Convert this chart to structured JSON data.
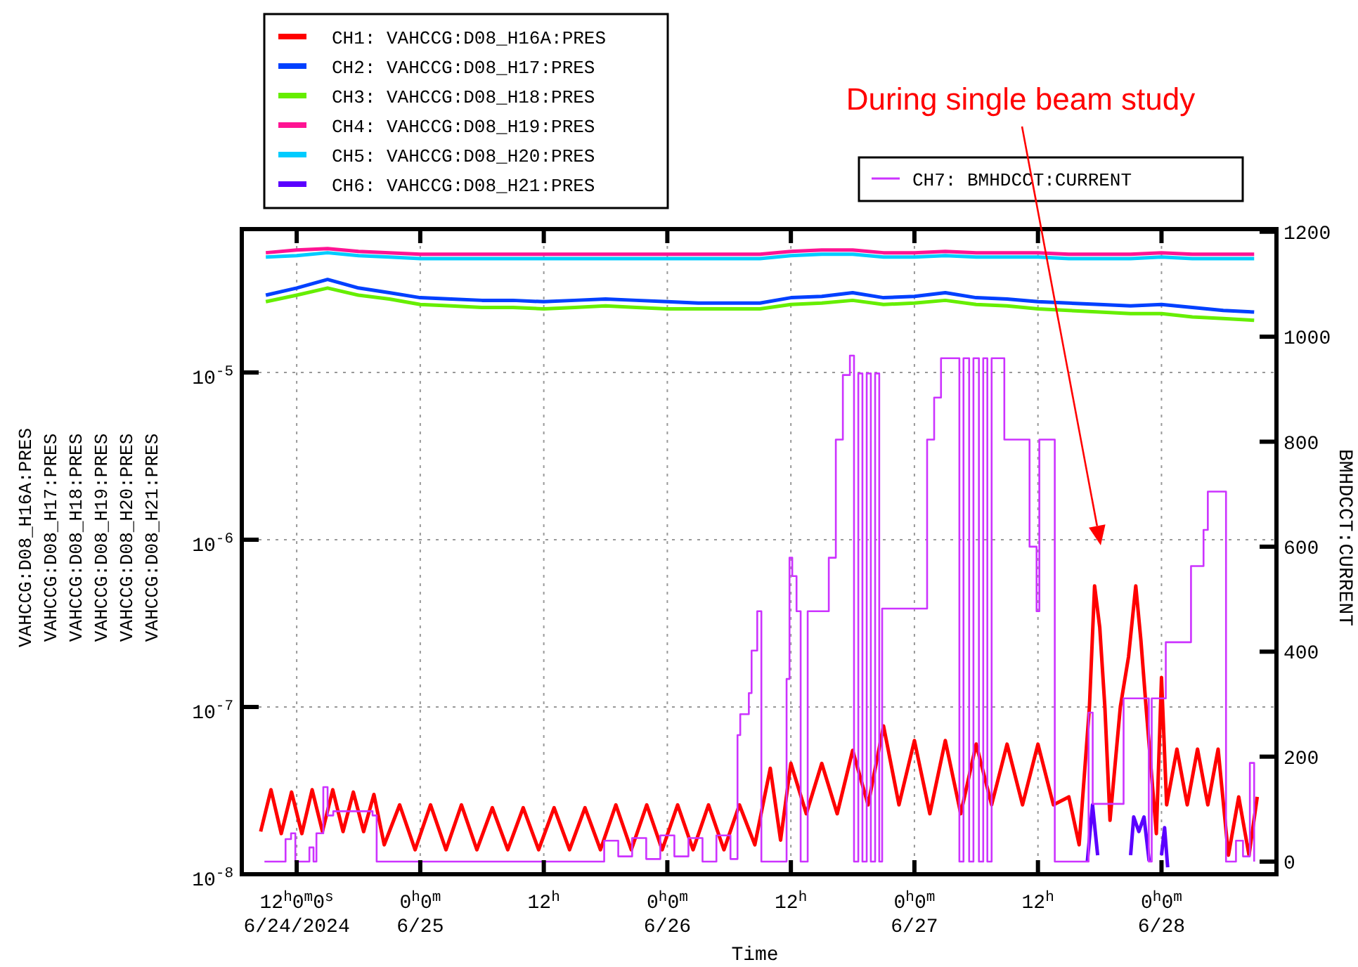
{
  "chart_data": {
    "type": "line",
    "xlabel": "Time",
    "ylabel": "VAHCCG:D08_H16A:PRES\nVAHCCG:D08_H17:PRES\nVAHCCG:D08_H18:PRES\nVAHCCG:D08_H19:PRES\nVAHCCG:D08_H20:PRES\nVAHCCG:D08_H21:PRES",
    "y2label": "BMHDCCT:CURRENT",
    "log": true,
    "grid": true,
    "legend": "top",
    "xlim": [
      "2024-06-24T06:40",
      "2024-06-28T11:10"
    ],
    "xticks": [
      {
        "value": "2024-06-24T12:00",
        "label": "12$^{h}$0$^{m}$0$^{s}$\n6/24/2024"
      },
      {
        "value": "2024-06-25T00:00",
        "label": "0$^{h}$0$^{m}$\n6/25"
      },
      {
        "value": "2024-06-25T12:00",
        "label": "12$^{h}$"
      },
      {
        "value": "2024-06-26T00:00",
        "label": "0$^{h}$0$^{m}$\n6/26"
      },
      {
        "value": "2024-06-26T12:00",
        "label": "12$^{h}$"
      },
      {
        "value": "2024-06-27T00:00",
        "label": "0$^{h}$0$^{m}$\n6/27"
      },
      {
        "value": "2024-06-27T12:00",
        "label": "12$^{h}$"
      },
      {
        "value": "2024-06-28T00:00",
        "label": "0$^{h}$0$^{m}$\n6/28"
      }
    ],
    "ylim": [
      1e-08,
      7.2e-05
    ],
    "yticks": [
      {
        "value": 1e-08,
        "label": "10$^{-8}$"
      },
      {
        "value": 1e-07,
        "label": "10$^{-7}$"
      },
      {
        "value": 1e-06,
        "label": "10$^{-6}$"
      },
      {
        "value": 1e-05,
        "label": "10$^{-5}$"
      }
    ],
    "y2lim": [
      -24,
      1205
    ],
    "y2ticks": [
      0,
      200,
      400,
      600,
      800,
      1000,
      1200
    ],
    "annotations": [
      "During single beam study"
    ],
    "x": [
      "2024-06-24T09:00",
      "2024-06-24T12:00",
      "2024-06-24T15:00",
      "2024-06-24T18:00",
      "2024-06-24T21:00",
      "2024-06-25T00:00",
      "2024-06-25T03:00",
      "2024-06-25T06:00",
      "2024-06-25T09:00",
      "2024-06-25T12:00",
      "2024-06-25T15:00",
      "2024-06-25T18:00",
      "2024-06-25T21:00",
      "2024-06-26T00:00",
      "2024-06-26T03:00",
      "2024-06-26T06:00",
      "2024-06-26T09:00",
      "2024-06-26T12:00",
      "2024-06-26T15:00",
      "2024-06-26T18:00",
      "2024-06-26T21:00",
      "2024-06-27T00:00",
      "2024-06-27T03:00",
      "2024-06-27T06:00",
      "2024-06-27T09:00",
      "2024-06-27T12:00",
      "2024-06-27T15:00",
      "2024-06-27T18:00",
      "2024-06-27T21:00",
      "2024-06-28T00:00",
      "2024-06-28T03:00",
      "2024-06-28T06:00",
      "2024-06-28T09:00"
    ],
    "series": [
      {
        "name": "CH1: VAHCCG:D08_H16A:PRES",
        "color": "#ff0000",
        "x": [
          "2024-06-24T08:30",
          "2024-06-24T09:30",
          "2024-06-24T10:30",
          "2024-06-24T11:30",
          "2024-06-24T12:30",
          "2024-06-24T13:30",
          "2024-06-24T14:30",
          "2024-06-24T15:30",
          "2024-06-24T16:30",
          "2024-06-24T17:30",
          "2024-06-24T18:30",
          "2024-06-24T19:30",
          "2024-06-24T20:30",
          "2024-06-24T22:00",
          "2024-06-24T23:30",
          "2024-06-25T01:00",
          "2024-06-25T02:30",
          "2024-06-25T04:00",
          "2024-06-25T05:30",
          "2024-06-25T07:00",
          "2024-06-25T08:30",
          "2024-06-25T10:00",
          "2024-06-25T11:30",
          "2024-06-25T13:00",
          "2024-06-25T14:30",
          "2024-06-25T16:00",
          "2024-06-25T17:30",
          "2024-06-25T19:00",
          "2024-06-25T20:30",
          "2024-06-25T22:00",
          "2024-06-25T23:30",
          "2024-06-26T01:00",
          "2024-06-26T02:30",
          "2024-06-26T04:00",
          "2024-06-26T05:30",
          "2024-06-26T07:00",
          "2024-06-26T08:30",
          "2024-06-26T10:00",
          "2024-06-26T11:00",
          "2024-06-26T12:00",
          "2024-06-26T13:30",
          "2024-06-26T15:00",
          "2024-06-26T16:30",
          "2024-06-26T18:00",
          "2024-06-26T19:30",
          "2024-06-26T21:00",
          "2024-06-26T22:30",
          "2024-06-27T00:00",
          "2024-06-27T01:30",
          "2024-06-27T03:00",
          "2024-06-27T04:30",
          "2024-06-27T06:00",
          "2024-06-27T07:30",
          "2024-06-27T09:00",
          "2024-06-27T10:30",
          "2024-06-27T12:00",
          "2024-06-27T13:30",
          "2024-06-27T15:00",
          "2024-06-27T16:00",
          "2024-06-27T17:00",
          "2024-06-27T17:30",
          "2024-06-27T18:00",
          "2024-06-27T18:30",
          "2024-06-27T19:00",
          "2024-06-27T20:00",
          "2024-06-27T20:48",
          "2024-06-27T21:30",
          "2024-06-27T22:00",
          "2024-06-27T22:30",
          "2024-06-27T23:30",
          "2024-06-28T00:00",
          "2024-06-28T00:30",
          "2024-06-28T01:30",
          "2024-06-28T02:30",
          "2024-06-28T03:30",
          "2024-06-28T04:30",
          "2024-06-28T05:30",
          "2024-06-28T06:30",
          "2024-06-28T07:30",
          "2024-06-28T08:30",
          "2024-06-28T09:18"
        ],
        "values": [
          1.8e-08,
          3.2e-08,
          1.75e-08,
          3.1e-08,
          1.75e-08,
          3.2e-08,
          1.8e-08,
          3.2e-08,
          1.8e-08,
          3.1e-08,
          1.8e-08,
          3e-08,
          1.5e-08,
          2.6e-08,
          1.4e-08,
          2.6e-08,
          1.4e-08,
          2.6e-08,
          1.4e-08,
          2.5e-08,
          1.4e-08,
          2.5e-08,
          1.4e-08,
          2.5e-08,
          1.4e-08,
          2.5e-08,
          1.4e-08,
          2.6e-08,
          1.4e-08,
          2.6e-08,
          1.4e-08,
          2.6e-08,
          1.4e-08,
          2.6e-08,
          1.4e-08,
          2.6e-08,
          1.5e-08,
          4.3e-08,
          1.6e-08,
          4.6e-08,
          2.3e-08,
          4.6e-08,
          2.3e-08,
          5.5e-08,
          2.6e-08,
          7.7e-08,
          2.6e-08,
          6.3e-08,
          2.3e-08,
          6.3e-08,
          2.3e-08,
          6e-08,
          2.6e-08,
          6e-08,
          2.6e-08,
          6e-08,
          2.6e-08,
          2.9e-08,
          1.5e-08,
          1e-07,
          5.3e-07,
          3e-07,
          1e-07,
          2.1e-08,
          1e-07,
          2e-07,
          5.3e-07,
          2.5e-07,
          1e-07,
          1.75e-08,
          1.5e-07,
          2.6e-08,
          5.6e-08,
          2.6e-08,
          5.6e-08,
          2.6e-08,
          5.6e-08,
          1.3e-08,
          2.9e-08,
          1.3e-08,
          2.9e-08
        ]
      },
      {
        "name": "CH2: VAHCCG:D08_H17:PRES",
        "color": "#0040ff",
        "values": [
          2.9e-05,
          3.2e-05,
          3.6e-05,
          3.2e-05,
          3e-05,
          2.8e-05,
          2.75e-05,
          2.7e-05,
          2.7e-05,
          2.65e-05,
          2.7e-05,
          2.75e-05,
          2.7e-05,
          2.65e-05,
          2.6e-05,
          2.6e-05,
          2.6e-05,
          2.8e-05,
          2.85e-05,
          3e-05,
          2.8e-05,
          2.85e-05,
          3e-05,
          2.8e-05,
          2.75e-05,
          2.65e-05,
          2.6e-05,
          2.55e-05,
          2.5e-05,
          2.55e-05,
          2.45e-05,
          2.35e-05,
          2.3e-05
        ]
      },
      {
        "name": "CH3: VAHCCG:D08_H18:PRES",
        "color": "#66ee00",
        "values": [
          2.65e-05,
          2.9e-05,
          3.2e-05,
          2.9e-05,
          2.75e-05,
          2.55e-05,
          2.5e-05,
          2.45e-05,
          2.45e-05,
          2.4e-05,
          2.45e-05,
          2.5e-05,
          2.45e-05,
          2.4e-05,
          2.4e-05,
          2.4e-05,
          2.4e-05,
          2.55e-05,
          2.6e-05,
          2.7e-05,
          2.55e-05,
          2.6e-05,
          2.7e-05,
          2.55e-05,
          2.5e-05,
          2.4e-05,
          2.35e-05,
          2.3e-05,
          2.25e-05,
          2.25e-05,
          2.15e-05,
          2.1e-05,
          2.05e-05
        ]
      },
      {
        "name": "CH4: VAHCCG:D08_H19:PRES",
        "color": "#ff1493",
        "values": [
          5.2e-05,
          5.4e-05,
          5.5e-05,
          5.3e-05,
          5.2e-05,
          5.1e-05,
          5.1e-05,
          5.1e-05,
          5.1e-05,
          5.1e-05,
          5.1e-05,
          5.1e-05,
          5.1e-05,
          5.1e-05,
          5.1e-05,
          5.1e-05,
          5.1e-05,
          5.3e-05,
          5.4e-05,
          5.4e-05,
          5.2e-05,
          5.2e-05,
          5.3e-05,
          5.2e-05,
          5.2e-05,
          5.2e-05,
          5.1e-05,
          5.1e-05,
          5.1e-05,
          5.2e-05,
          5.1e-05,
          5.1e-05,
          5.1e-05
        ]
      },
      {
        "name": "CH5: VAHCCG:D08_H20:PRES",
        "color": "#00ccff",
        "values": [
          4.9e-05,
          5e-05,
          5.2e-05,
          5e-05,
          4.9e-05,
          4.8e-05,
          4.8e-05,
          4.8e-05,
          4.8e-05,
          4.8e-05,
          4.8e-05,
          4.8e-05,
          4.8e-05,
          4.8e-05,
          4.8e-05,
          4.8e-05,
          4.8e-05,
          5e-05,
          5.1e-05,
          5.1e-05,
          4.9e-05,
          4.9e-05,
          5e-05,
          4.9e-05,
          4.9e-05,
          4.9e-05,
          4.8e-05,
          4.8e-05,
          4.8e-05,
          4.9e-05,
          4.8e-05,
          4.8e-05,
          4.8e-05
        ]
      },
      {
        "name": "CH6: VAHCCG:D08_H21:PRES",
        "color": "#5a00ff",
        "x": [
          "2024-06-27T16:48",
          "2024-06-27T17:18",
          "2024-06-27T17:48",
          "2024-06-27T18:18",
          "2024-06-27T21:00",
          "2024-06-27T21:18",
          "2024-06-27T21:48",
          "2024-06-27T22:18",
          "2024-06-27T22:48",
          "2024-06-27T23:30",
          "2024-06-28T00:00",
          "2024-06-28T00:18",
          "2024-06-28T00:36"
        ],
        "values": [
          1.2e-08,
          2.6e-08,
          1.3e-08,
          null,
          1.3e-08,
          2.2e-08,
          1.8e-08,
          2.2e-08,
          1.2e-08,
          null,
          1.3e-08,
          1.9e-08,
          1.1e-08
        ]
      },
      {
        "name": "CH7: BMHDCCT:CURRENT",
        "color": "#cc33ff",
        "type": "step",
        "axis": "y2",
        "x": [
          "2024-06-24T08:52",
          "2024-06-24T10:55",
          "2024-06-24T11:27",
          "2024-06-24T11:52",
          "2024-06-24T13:14",
          "2024-06-24T13:38",
          "2024-06-24T13:55",
          "2024-06-24T14:35",
          "2024-06-24T15:00",
          "2024-06-24T15:33",
          "2024-06-24T19:22",
          "2024-06-24T19:46",
          "2024-06-25T17:11",
          "2024-06-25T17:52",
          "2024-06-25T19:14",
          "2024-06-25T20:35",
          "2024-06-25T21:57",
          "2024-06-25T23:19",
          "2024-06-26T00:41",
          "2024-06-26T02:03",
          "2024-06-26T03:25",
          "2024-06-26T04:46",
          "2024-06-26T06:08",
          "2024-06-26T06:49",
          "2024-06-26T07:05",
          "2024-06-26T07:55",
          "2024-06-26T08:11",
          "2024-06-26T08:44",
          "2024-06-26T09:08",
          "2024-06-26T11:27",
          "2024-06-26T11:35",
          "2024-06-26T11:52",
          "2024-06-26T12:08",
          "2024-06-26T12:33",
          "2024-06-26T12:57",
          "2024-06-26T13:38",
          "2024-06-26T15:25",
          "2024-06-26T15:41",
          "2024-06-26T16:22",
          "2024-06-26T17:03",
          "2024-06-26T17:44",
          "2024-06-26T18:08",
          "2024-06-26T18:33",
          "2024-06-26T18:57",
          "2024-06-26T19:22",
          "2024-06-26T19:46",
          "2024-06-26T20:11",
          "2024-06-26T20:35",
          "2024-06-26T20:52",
          "2024-06-27T00:57",
          "2024-06-27T01:14",
          "2024-06-27T01:55",
          "2024-06-27T02:35",
          "2024-06-27T03:57",
          "2024-06-27T04:22",
          "2024-06-27T04:46",
          "2024-06-27T05:19",
          "2024-06-27T05:44",
          "2024-06-27T06:16",
          "2024-06-27T06:41",
          "2024-06-27T07:05",
          "2024-06-27T07:30",
          "2024-06-27T08:27",
          "2024-06-27T08:44",
          "2024-06-27T10:14",
          "2024-06-27T11:11",
          "2024-06-27T11:52",
          "2024-06-27T12:08",
          "2024-06-27T13:30",
          "2024-06-27T13:38",
          "2024-06-27T16:30",
          "2024-06-27T16:55",
          "2024-06-27T17:19",
          "2024-06-27T20:03",
          "2024-06-27T20:19",
          "2024-06-27T22:38",
          "2024-06-27T22:46",
          "2024-06-27T23:03",
          "2024-06-28T00:25",
          "2024-06-28T01:46",
          "2024-06-28T02:52",
          "2024-06-28T04:05",
          "2024-06-28T04:30",
          "2024-06-28T06:08",
          "2024-06-28T06:16",
          "2024-06-28T07:14",
          "2024-06-28T07:55",
          "2024-06-28T08:35",
          "2024-06-28T09:00"
        ],
        "values": [
          0,
          43,
          54,
          0,
          27,
          0,
          54,
          142,
          88,
          96,
          88,
          0,
          0,
          40,
          10,
          45,
          5,
          50,
          10,
          45,
          0,
          50,
          5,
          241,
          281,
          321,
          402,
          477,
          0,
          0,
          348,
          579,
          544,
          477,
          0,
          477,
          477,
          579,
          804,
          927,
          964,
          0,
          930,
          0,
          930,
          0,
          930,
          0,
          482,
          482,
          804,
          884,
          959,
          959,
          0,
          959,
          0,
          959,
          0,
          959,
          0,
          959,
          959,
          804,
          804,
          600,
          477,
          804,
          804,
          0,
          0,
          284,
          110,
          110,
          311,
          311,
          0,
          311,
          418,
          418,
          563,
          632,
          705,
          705,
          0,
          40,
          10,
          188,
          0
        ]
      }
    ]
  }
}
